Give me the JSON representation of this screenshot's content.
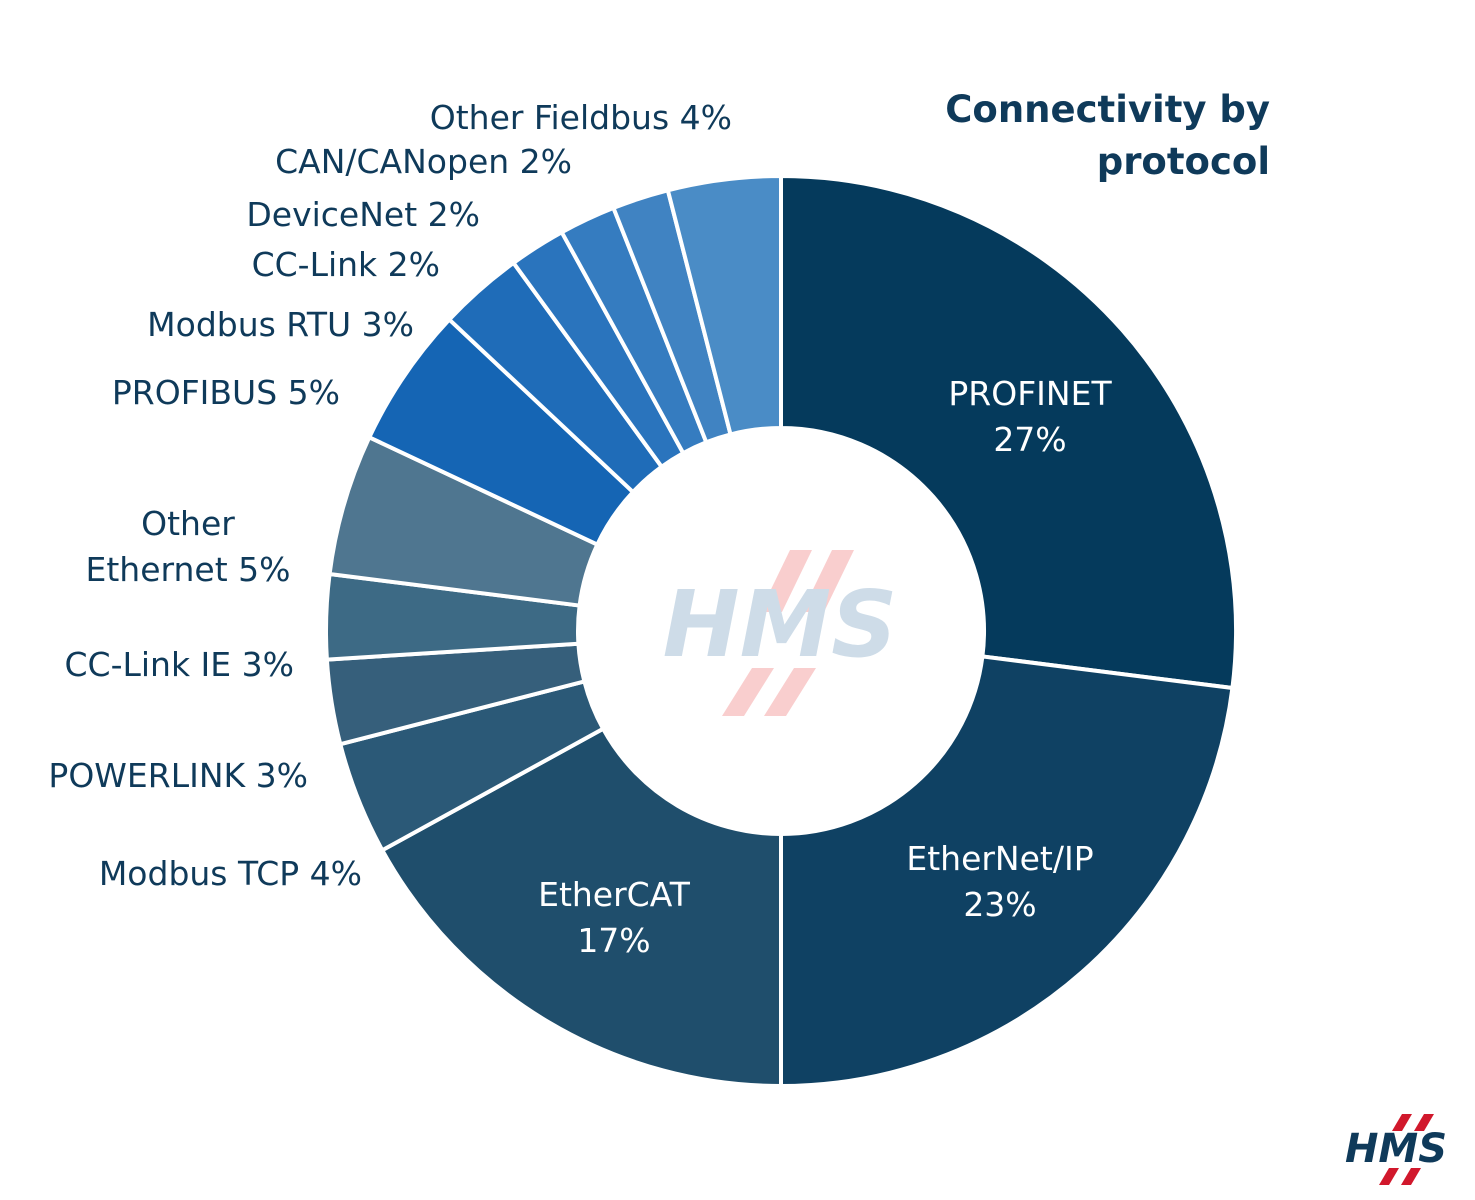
{
  "chart_data": {
    "type": "pie",
    "donut": true,
    "title": "Connectivity by protocol",
    "slices": [
      {
        "label": "PROFINET",
        "value": 27,
        "value_label": "27%",
        "color": "#053a5c"
      },
      {
        "label": "EtherNet/IP",
        "value": 23,
        "value_label": "23%",
        "color": "#0f4163"
      },
      {
        "label": "EtherCAT",
        "value": 17,
        "value_label": "17%",
        "color": "#1f4e6c"
      },
      {
        "label": "Modbus TCP",
        "value": 4,
        "value_label": "4%",
        "color": "#2b5977"
      },
      {
        "label": "POWERLINK",
        "value": 3,
        "value_label": "3%",
        "color": "#365f7b"
      },
      {
        "label": "CC-Link IE",
        "value": 3,
        "value_label": "3%",
        "color": "#3d6a85"
      },
      {
        "label": "Other Ethernet",
        "value": 5,
        "value_label": "5%",
        "color": "#4f7690"
      },
      {
        "label": "PROFIBUS",
        "value": 5,
        "value_label": "5%",
        "color": "#1565b4"
      },
      {
        "label": "Modbus RTU",
        "value": 3,
        "value_label": "3%",
        "color": "#1f6cb8"
      },
      {
        "label": "CC-Link",
        "value": 2,
        "value_label": "2%",
        "color": "#2a74bd"
      },
      {
        "label": "DeviceNet",
        "value": 2,
        "value_label": "2%",
        "color": "#357cc0"
      },
      {
        "label": "CAN/CANopen",
        "value": 2,
        "value_label": "2%",
        "color": "#4083c2"
      },
      {
        "label": "Other Fieldbus",
        "value": 4,
        "value_label": "4%",
        "color": "#4a8cc6"
      }
    ],
    "legend": "none",
    "label_placement": "inside for large slices, outside-left for small slices"
  },
  "watermark": {
    "text": "HMS",
    "color": "#9fb8cf",
    "accent_color": "#f08a8a"
  },
  "logo": {
    "text": "HMS",
    "color": "#0f3a5a",
    "accent_color": "#d1182c"
  }
}
